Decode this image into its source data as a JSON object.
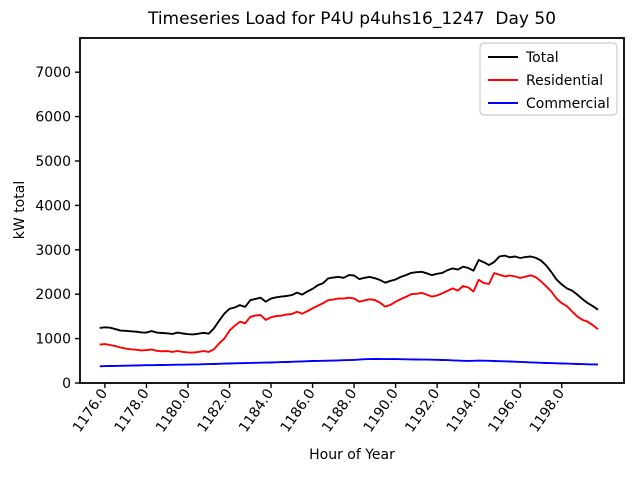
{
  "figure": {
    "background": "#ffffff",
    "axes_edge_color": "#000000",
    "legend_border_color": "#cccccc"
  },
  "chart_data": {
    "type": "line",
    "title": "Timeseries Load for P4U p4uhs16_1247  Day 50",
    "xlabel": "Hour of Year",
    "ylabel": "kW total",
    "grid": false,
    "legend_position": "upper right",
    "xlim": [
      1174.8,
      1201.0
    ],
    "ylim": [
      0,
      7770
    ],
    "xticks": [
      1176,
      1178,
      1180,
      1182,
      1184,
      1186,
      1188,
      1190,
      1192,
      1194,
      1196,
      1198
    ],
    "xtick_labels": [
      "1176.0",
      "1178.0",
      "1180.0",
      "1182.0",
      "1184.0",
      "1186.0",
      "1188.0",
      "1190.0",
      "1192.0",
      "1194.0",
      "1196.0",
      "1198.0"
    ],
    "yticks": [
      0,
      1000,
      2000,
      3000,
      4000,
      5000,
      6000,
      7000
    ],
    "ytick_labels": [
      "0",
      "1000",
      "2000",
      "3000",
      "4000",
      "5000",
      "6000",
      "7000"
    ],
    "x_start": 1175.75,
    "x_step": 0.25,
    "series": [
      {
        "name": "Total",
        "color": "#000000",
        "values": [
          1240,
          1255,
          1245,
          1215,
          1180,
          1175,
          1165,
          1155,
          1140,
          1135,
          1170,
          1135,
          1125,
          1120,
          1105,
          1135,
          1115,
          1100,
          1095,
          1110,
          1130,
          1110,
          1230,
          1400,
          1560,
          1670,
          1700,
          1755,
          1715,
          1865,
          1895,
          1920,
          1830,
          1900,
          1930,
          1945,
          1960,
          1980,
          2035,
          1990,
          2060,
          2120,
          2200,
          2245,
          2355,
          2375,
          2390,
          2370,
          2430,
          2420,
          2340,
          2370,
          2390,
          2360,
          2320,
          2260,
          2300,
          2330,
          2390,
          2430,
          2480,
          2495,
          2505,
          2470,
          2430,
          2460,
          2480,
          2540,
          2580,
          2555,
          2620,
          2590,
          2530,
          2770,
          2720,
          2655,
          2725,
          2850,
          2870,
          2830,
          2850,
          2815,
          2835,
          2850,
          2820,
          2760,
          2650,
          2500,
          2330,
          2220,
          2130,
          2080,
          1990,
          1890,
          1800,
          1730,
          1650
        ]
      },
      {
        "name": "Residential",
        "color": "#ff0000",
        "values": [
          865,
          875,
          855,
          830,
          800,
          775,
          760,
          750,
          735,
          740,
          755,
          725,
          715,
          720,
          700,
          720,
          700,
          690,
          685,
          700,
          720,
          700,
          760,
          890,
          1000,
          1180,
          1290,
          1380,
          1345,
          1490,
          1520,
          1530,
          1420,
          1480,
          1510,
          1515,
          1545,
          1555,
          1605,
          1560,
          1620,
          1680,
          1740,
          1795,
          1865,
          1880,
          1905,
          1900,
          1920,
          1905,
          1830,
          1860,
          1885,
          1870,
          1810,
          1720,
          1760,
          1830,
          1890,
          1940,
          2000,
          2010,
          2030,
          1990,
          1945,
          1970,
          2020,
          2075,
          2130,
          2080,
          2185,
          2150,
          2060,
          2325,
          2250,
          2230,
          2475,
          2440,
          2400,
          2420,
          2400,
          2365,
          2395,
          2425,
          2380,
          2290,
          2180,
          2060,
          1900,
          1800,
          1730,
          1610,
          1500,
          1420,
          1380,
          1300,
          1210
        ]
      },
      {
        "name": "Commercial",
        "color": "#0000ff",
        "values": [
          375,
          380,
          382,
          385,
          388,
          390,
          393,
          395,
          398,
          400,
          402,
          404,
          406,
          408,
          410,
          412,
          413,
          415,
          418,
          420,
          423,
          425,
          429,
          433,
          436,
          440,
          443,
          446,
          449,
          452,
          455,
          457,
          460,
          462,
          466,
          470,
          474,
          478,
          482,
          486,
          491,
          495,
          498,
          500,
          503,
          505,
          509,
          513,
          516,
          520,
          528,
          535,
          538,
          540,
          540,
          539,
          539,
          538,
          536,
          534,
          532,
          530,
          528,
          526,
          524,
          522,
          518,
          515,
          510,
          505,
          501,
          498,
          501,
          505,
          502,
          500,
          496,
          492,
          488,
          485,
          480,
          475,
          470,
          465,
          460,
          455,
          451,
          448,
          444,
          440,
          436,
          432,
          428,
          425,
          422,
          420,
          418
        ]
      }
    ]
  }
}
